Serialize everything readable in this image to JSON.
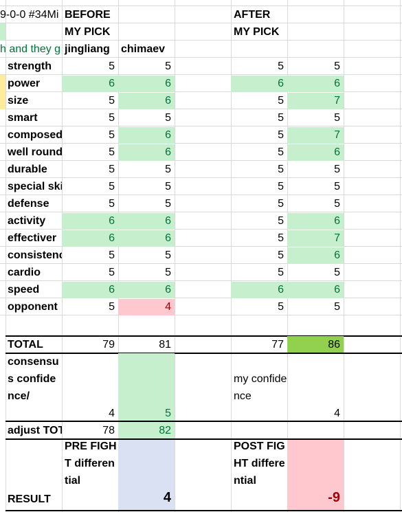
{
  "sheet": {
    "corner_title": "9-0-0 #34Mi",
    "left_fragment": "h and they g",
    "before_header": [
      "BEFORE",
      "MY PICK"
    ],
    "after_header": [
      "AFTER",
      "MY PICK"
    ],
    "fighters": [
      "jingliang",
      "chimaev"
    ],
    "rows": [
      {
        "label": "strength",
        "b1": "5",
        "b2": "5",
        "a1": "5",
        "a2": "5"
      },
      {
        "label": "power",
        "b1": "6",
        "b2": "6",
        "a1": "6",
        "a2": "6"
      },
      {
        "label": "size",
        "b1": "5",
        "b2": "6",
        "a1": "5",
        "a2": "7"
      },
      {
        "label": "smart",
        "b1": "5",
        "b2": "5",
        "a1": "5",
        "a2": "5"
      },
      {
        "label": "composed",
        "b1": "5",
        "b2": "6",
        "a1": "5",
        "a2": "7"
      },
      {
        "label": "well round",
        "b1": "5",
        "b2": "6",
        "a1": "5",
        "a2": "6"
      },
      {
        "label": "durable",
        "b1": "5",
        "b2": "5",
        "a1": "5",
        "a2": "5"
      },
      {
        "label": "special ski",
        "b1": "5",
        "b2": "5",
        "a1": "5",
        "a2": "5"
      },
      {
        "label": "defense",
        "b1": "5",
        "b2": "5",
        "a1": "5",
        "a2": "5"
      },
      {
        "label": "activity",
        "b1": "6",
        "b2": "6",
        "a1": "5",
        "a2": "6"
      },
      {
        "label": "effectiver",
        "b1": "6",
        "b2": "6",
        "a1": "5",
        "a2": "7"
      },
      {
        "label": "consistenc",
        "b1": "5",
        "b2": "5",
        "a1": "5",
        "a2": "6"
      },
      {
        "label": "cardio",
        "b1": "5",
        "b2": "5",
        "a1": "5",
        "a2": "5"
      },
      {
        "label": "speed",
        "b1": "6",
        "b2": "6",
        "a1": "6",
        "a2": "6"
      },
      {
        "label": "opponent",
        "b1": "5",
        "b2": "4",
        "a1": "5",
        "a2": "5"
      }
    ],
    "total": {
      "label": "TOTAL",
      "b1": "79",
      "b2": "81",
      "a1": "77",
      "a2": "86"
    },
    "consensus": {
      "label": "consensus confidence/",
      "b1": "4",
      "b2": "5"
    },
    "my_confidence": {
      "label": "my confidence",
      "value": "4"
    },
    "adjust": {
      "label": "adjust TOT",
      "b1": "78",
      "b2": "82"
    },
    "result": {
      "label": "RESULT",
      "pre_label": "PRE FIGHT differential",
      "pre_value": "4",
      "post_label": "POST FIGHT differential",
      "post_value": "-9"
    },
    "colors": {
      "positive_fill": "#c6efce",
      "negative_fill": "#ffc7ce",
      "highlight": "#92d050",
      "blue_fill": "#d9e1f2"
    }
  }
}
